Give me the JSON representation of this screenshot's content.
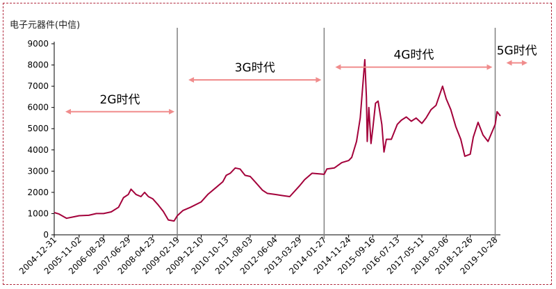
{
  "chart_data": {
    "type": "line",
    "title": "电子元器件(中信)",
    "ylim": [
      0,
      9000
    ],
    "yticks": [
      0,
      1000,
      2000,
      3000,
      4000,
      5000,
      6000,
      7000,
      8000,
      9000
    ],
    "xlim": [
      "2004-12-31",
      "2019-12-31"
    ],
    "xticks": [
      "2004-12-31",
      "2005-11-02",
      "2006-08-29",
      "2007-06-29",
      "2008-04-23",
      "2009-02-19",
      "2009-12-10",
      "2010-10-13",
      "2011-08-03",
      "2012-06-04",
      "2013-03-29",
      "2014-01-27",
      "2014-11-24",
      "2015-09-16",
      "2016-07-13",
      "2017-05-11",
      "2018-03-06",
      "2018-12-26",
      "2019-10-28"
    ],
    "grid": false,
    "series": [
      {
        "color": "#a3003a",
        "points": [
          [
            "2004-12-31",
            1050
          ],
          [
            "2005-03-01",
            980
          ],
          [
            "2005-06-01",
            780
          ],
          [
            "2005-09-01",
            850
          ],
          [
            "2005-11-02",
            900
          ],
          [
            "2006-03-01",
            920
          ],
          [
            "2006-06-01",
            1000
          ],
          [
            "2006-08-29",
            1000
          ],
          [
            "2006-12-01",
            1080
          ],
          [
            "2007-03-01",
            1300
          ],
          [
            "2007-05-01",
            1750
          ],
          [
            "2007-06-29",
            1900
          ],
          [
            "2007-08-01",
            2150
          ],
          [
            "2007-10-01",
            1900
          ],
          [
            "2007-12-01",
            1800
          ],
          [
            "2008-01-15",
            2000
          ],
          [
            "2008-03-01",
            1800
          ],
          [
            "2008-04-23",
            1700
          ],
          [
            "2008-07-01",
            1400
          ],
          [
            "2008-09-01",
            1100
          ],
          [
            "2008-11-01",
            700
          ],
          [
            "2009-01-10",
            650
          ],
          [
            "2009-02-19",
            900
          ],
          [
            "2009-05-01",
            1150
          ],
          [
            "2009-08-01",
            1300
          ],
          [
            "2009-12-10",
            1550
          ],
          [
            "2010-03-01",
            1900
          ],
          [
            "2010-06-01",
            2200
          ],
          [
            "2010-09-01",
            2500
          ],
          [
            "2010-10-13",
            2800
          ],
          [
            "2010-12-01",
            2900
          ],
          [
            "2011-02-01",
            3150
          ],
          [
            "2011-04-01",
            3100
          ],
          [
            "2011-06-01",
            2800
          ],
          [
            "2011-08-03",
            2750
          ],
          [
            "2011-10-01",
            2500
          ],
          [
            "2012-01-01",
            2100
          ],
          [
            "2012-03-01",
            1950
          ],
          [
            "2012-06-04",
            1900
          ],
          [
            "2012-09-01",
            1850
          ],
          [
            "2012-12-01",
            1800
          ],
          [
            "2013-03-29",
            2300
          ],
          [
            "2013-06-01",
            2600
          ],
          [
            "2013-09-01",
            2900
          ],
          [
            "2014-01-27",
            2850
          ],
          [
            "2014-03-01",
            3100
          ],
          [
            "2014-06-01",
            3150
          ],
          [
            "2014-09-01",
            3400
          ],
          [
            "2014-11-24",
            3500
          ],
          [
            "2015-01-01",
            3650
          ],
          [
            "2015-03-01",
            4400
          ],
          [
            "2015-04-15",
            5500
          ],
          [
            "2015-05-20",
            7200
          ],
          [
            "2015-06-10",
            8250
          ],
          [
            "2015-06-30",
            6500
          ],
          [
            "2015-07-10",
            4400
          ],
          [
            "2015-07-30",
            6000
          ],
          [
            "2015-08-25",
            4300
          ],
          [
            "2015-09-16",
            5000
          ],
          [
            "2015-10-20",
            6200
          ],
          [
            "2015-11-20",
            6300
          ],
          [
            "2016-01-05",
            5200
          ],
          [
            "2016-02-01",
            3900
          ],
          [
            "2016-03-01",
            4500
          ],
          [
            "2016-05-01",
            4500
          ],
          [
            "2016-07-13",
            5200
          ],
          [
            "2016-09-01",
            5400
          ],
          [
            "2016-11-01",
            5550
          ],
          [
            "2017-01-01",
            5350
          ],
          [
            "2017-03-01",
            5500
          ],
          [
            "2017-05-11",
            5250
          ],
          [
            "2017-07-01",
            5500
          ],
          [
            "2017-09-01",
            5900
          ],
          [
            "2017-11-01",
            6100
          ],
          [
            "2018-01-20",
            7000
          ],
          [
            "2018-03-06",
            6400
          ],
          [
            "2018-05-01",
            5900
          ],
          [
            "2018-07-01",
            5100
          ],
          [
            "2018-09-01",
            4500
          ],
          [
            "2018-10-20",
            3700
          ],
          [
            "2018-12-26",
            3800
          ],
          [
            "2019-02-01",
            4600
          ],
          [
            "2019-04-01",
            5300
          ],
          [
            "2019-06-01",
            4700
          ],
          [
            "2019-08-01",
            4400
          ],
          [
            "2019-10-28",
            5200
          ],
          [
            "2019-11-20",
            5800
          ],
          [
            "2019-12-31",
            5600
          ]
        ]
      }
    ],
    "eras": [
      {
        "label": "2G时代",
        "start": "2004-12-31",
        "end": "2009-02-19",
        "y": 5800
      },
      {
        "label": "3G时代",
        "start": "2009-02-19",
        "end": "2014-01-27",
        "y": 7300
      },
      {
        "label": "4G时代",
        "start": "2014-01-27",
        "end": "2019-10-28",
        "y": 7900
      },
      {
        "label": "5G时代",
        "start": "2019-10-28",
        "end": "2020-12-31",
        "y": 8100
      }
    ],
    "dividers": [
      "2009-02-19",
      "2014-01-27",
      "2019-10-28"
    ]
  }
}
